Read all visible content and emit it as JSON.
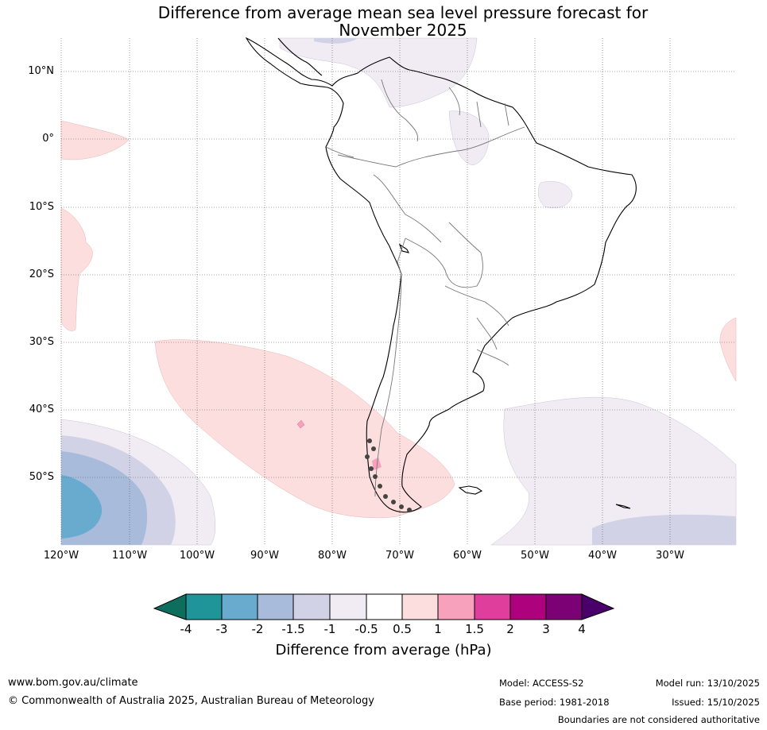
{
  "title_line1": "Difference from average mean sea level pressure forecast for",
  "title_line2": "November 2025",
  "map": {
    "lat_labels": [
      "10°N",
      "0°",
      "10°S",
      "20°S",
      "30°S",
      "40°S",
      "50°S"
    ],
    "lon_labels": [
      "120°W",
      "110°W",
      "100°W",
      "90°W",
      "80°W",
      "70°W",
      "60°W",
      "50°W",
      "40°W",
      "30°W"
    ]
  },
  "colorbar": {
    "tick_labels": [
      "-4",
      "-3",
      "-2",
      "-1.5",
      "-1",
      "-0.5",
      "0.5",
      "1",
      "1.5",
      "2",
      "3",
      "4"
    ],
    "colors": [
      "#0e6e5e",
      "#1f9499",
      "#69abcf",
      "#a8bbdb",
      "#d1d2e5",
      "#f1ecf3",
      "#ffffff",
      "#fddede",
      "#f8a1bd",
      "#e03e9c",
      "#ad017e",
      "#7b0174",
      "#4a006a"
    ],
    "title": "Difference from average (hPa)"
  },
  "footer": {
    "website": "www.bom.gov.au/climate",
    "copyright": "© Commonwealth of Australia 2025, Australian Bureau of Meteorology",
    "model": "Model: ACCESS-S2",
    "base_period": "Base period: 1981-2018",
    "model_run": "Model run: 13/10/2025",
    "issued": "Issued: 15/10/2025",
    "disclaimer": "Boundaries are not considered authoritative"
  }
}
